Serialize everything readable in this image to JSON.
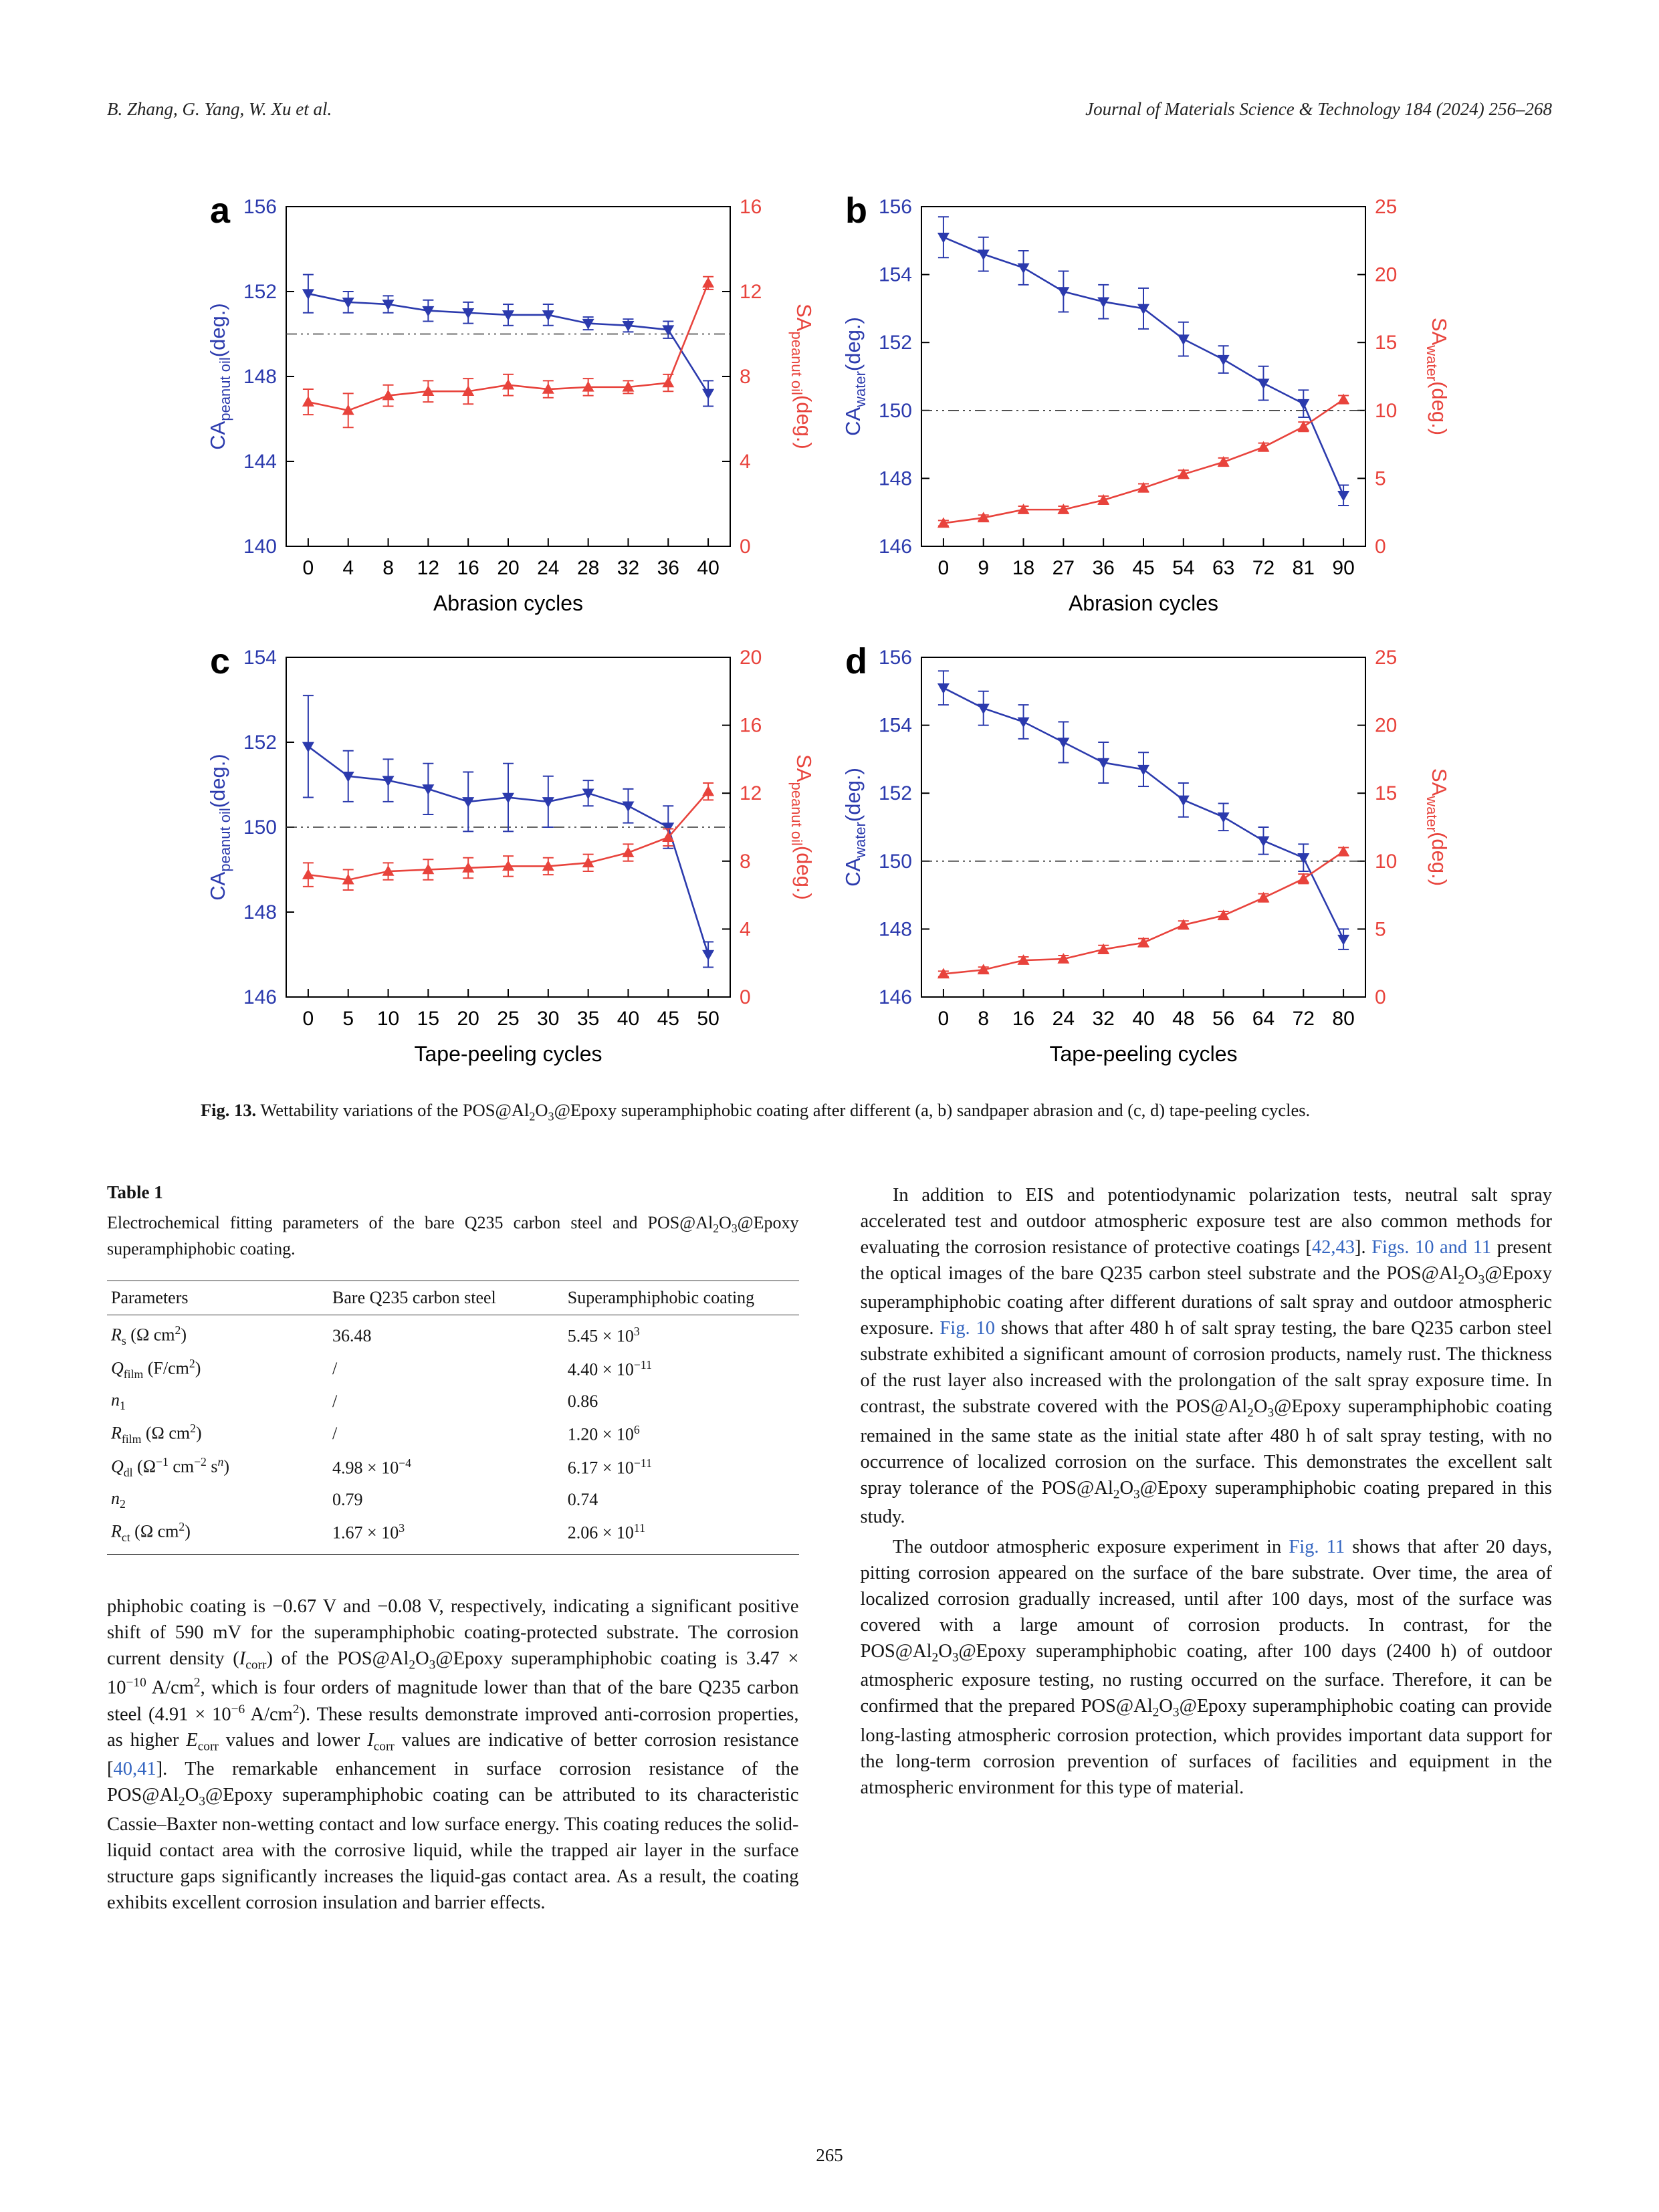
{
  "header": {
    "authors": "B. Zhang, G. Yang, W. Xu et al.",
    "journal": "Journal of Materials Science & Technology 184 (2024) 256–268"
  },
  "figure": {
    "caption_label": "Fig. 13.",
    "caption_text": " Wettability variations of the POS@Al~2~O~3~@Epoxy superamphiphobic coating after different (a, b) sandpaper abrasion and (c, d) tape-peeling cycles."
  },
  "chart_data": [
    {
      "type": "line",
      "panel": "a",
      "xlabel": "Abrasion cycles",
      "x": [
        0,
        4,
        8,
        12,
        16,
        20,
        24,
        28,
        32,
        36,
        40
      ],
      "left_axis": {
        "label": "CA~peanut oil~(deg.)",
        "range": [
          140,
          156
        ],
        "ticks": [
          140,
          144,
          148,
          152,
          156
        ]
      },
      "right_axis": {
        "label": "SA~peanut oil~(deg.)",
        "range": [
          0,
          16
        ],
        "ticks": [
          0,
          4,
          8,
          12,
          16
        ]
      },
      "reference_line_left": 150,
      "series": [
        {
          "name": "CA peanut oil",
          "yaxis": "left",
          "color": "#2b3aad",
          "marker": "triangle-down",
          "values": [
            151.9,
            151.5,
            151.4,
            151.1,
            151.0,
            150.9,
            150.9,
            150.5,
            150.4,
            150.2,
            147.2
          ],
          "errors": [
            0.9,
            0.5,
            0.4,
            0.5,
            0.5,
            0.5,
            0.5,
            0.3,
            0.3,
            0.4,
            0.6
          ]
        },
        {
          "name": "SA peanut oil",
          "yaxis": "right",
          "color": "#e8433c",
          "marker": "triangle-up",
          "values": [
            6.8,
            6.4,
            7.1,
            7.3,
            7.3,
            7.6,
            7.4,
            7.5,
            7.5,
            7.7,
            12.4
          ],
          "errors": [
            0.6,
            0.8,
            0.5,
            0.5,
            0.6,
            0.5,
            0.4,
            0.4,
            0.3,
            0.4,
            0.3
          ]
        }
      ]
    },
    {
      "type": "line",
      "panel": "b",
      "xlabel": "Abrasion cycles",
      "x": [
        0,
        9,
        18,
        27,
        36,
        45,
        54,
        63,
        72,
        81,
        90
      ],
      "left_axis": {
        "label": "CA~water~(deg.)",
        "range": [
          146,
          156
        ],
        "ticks": [
          146,
          148,
          150,
          152,
          154,
          156
        ]
      },
      "right_axis": {
        "label": "SA~water~(deg.)",
        "range": [
          0,
          25
        ],
        "ticks": [
          0,
          5,
          10,
          15,
          20,
          25
        ]
      },
      "reference_line_left": 150,
      "series": [
        {
          "name": "CA water",
          "yaxis": "left",
          "color": "#2b3aad",
          "marker": "triangle-down",
          "values": [
            155.1,
            154.6,
            154.2,
            153.5,
            153.2,
            153.0,
            152.1,
            151.5,
            150.8,
            150.2,
            147.5
          ],
          "errors": [
            0.6,
            0.5,
            0.5,
            0.6,
            0.5,
            0.6,
            0.5,
            0.4,
            0.5,
            0.4,
            0.3
          ]
        },
        {
          "name": "SA water",
          "yaxis": "right",
          "color": "#e8433c",
          "marker": "triangle-up",
          "values": [
            1.7,
            2.1,
            2.7,
            2.7,
            3.4,
            4.3,
            5.3,
            6.2,
            7.3,
            8.8,
            10.8
          ],
          "errors": [
            0.2,
            0.2,
            0.25,
            0.25,
            0.3,
            0.3,
            0.3,
            0.3,
            0.3,
            0.35,
            0.3
          ]
        }
      ]
    },
    {
      "type": "line",
      "panel": "c",
      "xlabel": "Tape-peeling cycles",
      "x": [
        0,
        5,
        10,
        15,
        20,
        25,
        30,
        35,
        40,
        45,
        50
      ],
      "left_axis": {
        "label": "CA~peanut oil~(deg.)",
        "range": [
          146,
          154
        ],
        "ticks": [
          146,
          148,
          150,
          152,
          154
        ]
      },
      "right_axis": {
        "label": "SA~peanut oil~(deg.)",
        "range": [
          0,
          20
        ],
        "ticks": [
          0,
          4,
          8,
          12,
          16,
          20
        ]
      },
      "reference_line_left": 150,
      "series": [
        {
          "name": "CA peanut oil",
          "yaxis": "left",
          "color": "#2b3aad",
          "marker": "triangle-down",
          "values": [
            151.9,
            151.2,
            151.1,
            150.9,
            150.6,
            150.7,
            150.6,
            150.8,
            150.5,
            150.0,
            147.0
          ],
          "errors": [
            1.2,
            0.6,
            0.5,
            0.6,
            0.7,
            0.8,
            0.6,
            0.3,
            0.4,
            0.5,
            0.3
          ]
        },
        {
          "name": "SA peanut oil",
          "yaxis": "right",
          "color": "#e8433c",
          "marker": "triangle-up",
          "values": [
            7.2,
            6.9,
            7.4,
            7.5,
            7.6,
            7.7,
            7.7,
            7.9,
            8.5,
            9.4,
            12.1
          ],
          "errors": [
            0.7,
            0.6,
            0.5,
            0.6,
            0.6,
            0.6,
            0.5,
            0.5,
            0.5,
            0.5,
            0.5
          ]
        }
      ]
    },
    {
      "type": "line",
      "panel": "d",
      "xlabel": "Tape-peeling cycles",
      "x": [
        0,
        8,
        16,
        24,
        32,
        40,
        48,
        56,
        64,
        72,
        80
      ],
      "left_axis": {
        "label": "CA~water~(deg.)",
        "range": [
          146,
          156
        ],
        "ticks": [
          146,
          148,
          150,
          152,
          154,
          156
        ]
      },
      "right_axis": {
        "label": "SA~water~(deg.)",
        "range": [
          0,
          25
        ],
        "ticks": [
          0,
          5,
          10,
          15,
          20,
          25
        ]
      },
      "reference_line_left": 150,
      "series": [
        {
          "name": "CA water",
          "yaxis": "left",
          "color": "#2b3aad",
          "marker": "triangle-down",
          "values": [
            155.1,
            154.5,
            154.1,
            153.5,
            152.9,
            152.7,
            151.8,
            151.3,
            150.6,
            150.1,
            147.7
          ],
          "errors": [
            0.5,
            0.5,
            0.5,
            0.6,
            0.6,
            0.5,
            0.5,
            0.4,
            0.4,
            0.4,
            0.3
          ]
        },
        {
          "name": "SA water",
          "yaxis": "right",
          "color": "#e8433c",
          "marker": "triangle-up",
          "values": [
            1.7,
            2.0,
            2.7,
            2.8,
            3.5,
            4.0,
            5.3,
            6.0,
            7.3,
            8.7,
            10.7
          ],
          "errors": [
            0.2,
            0.2,
            0.25,
            0.25,
            0.3,
            0.3,
            0.3,
            0.3,
            0.3,
            0.35,
            0.3
          ]
        }
      ]
    }
  ],
  "table": {
    "title": "Table 1",
    "description": "Electrochemical fitting parameters of the bare Q235 carbon steel and POS@Al~2~O~3~@Epoxy superamphiphobic coating.",
    "columns": [
      "Parameters",
      "Bare Q235 carbon steel",
      "Superamphiphobic coating"
    ],
    "rows": [
      {
        "param": "*R*~s~ (Ω cm^2^)",
        "bare": "36.48",
        "coating": "5.45 × 10^3^"
      },
      {
        "param": "*Q*~film~ (F/cm^2^)",
        "bare": "/",
        "coating": "4.40 × 10^−11^"
      },
      {
        "param": "*n*~1~",
        "bare": "/",
        "coating": "0.86"
      },
      {
        "param": "*R*~film~ (Ω cm^2^)",
        "bare": "/",
        "coating": "1.20 × 10^6^"
      },
      {
        "param": "*Q*~dl~ (Ω^−1^ cm^−2^ s^*n*^)",
        "bare": "4.98 × 10^−4^",
        "coating": "6.17 × 10^−11^"
      },
      {
        "param": "*n*~2~",
        "bare": "0.79",
        "coating": "0.74"
      },
      {
        "param": "*R*~ct~ (Ω cm^2^)",
        "bare": "1.67 × 10^3^",
        "coating": "2.06 × 10^11^"
      }
    ]
  },
  "body": {
    "left_paragraphs": [
      "phiphobic coating is −0.67 V and −0.08 V, respectively, indicating a significant positive shift of 590 mV for the superamphiphobic coating-protected substrate. The corrosion current density (*I*~corr~) of the POS@Al~2~O~3~@Epoxy superamphiphobic coating is 3.47 × 10^−10^ A/cm^2^, which is four orders of magnitude lower than that of the bare Q235 carbon steel (4.91 × 10^−6^ A/cm^2^). These results demonstrate improved anti-corrosion properties, as higher *E*~corr~ values and lower *I*~corr~ values are indicative of better corrosion resistance [%%40,41%%]. The remarkable enhancement in surface corrosion resistance of the POS@Al~2~O~3~@Epoxy superamphiphobic coating can be attributed to its characteristic Cassie–Baxter non-wetting contact and low surface energy. This coating reduces the solid-liquid contact area with the corrosive liquid, while the trapped air layer in the surface structure gaps significantly increases the liquid-gas contact area. As a result, the coating exhibits excellent corrosion insulation and barrier effects."
    ],
    "right_paragraphs": [
      "In addition to EIS and potentiodynamic polarization tests, neutral salt spray accelerated test and outdoor atmospheric exposure test are also common methods for evaluating the corrosion resistance of protective coatings [%%42,43%%]. %%Figs. 10 and 11%% present the optical images of the bare Q235 carbon steel substrate and the POS@Al~2~O~3~@Epoxy superamphiphobic coating after different durations of salt spray and outdoor atmospheric exposure. %%Fig. 10%% shows that after 480 h of salt spray testing, the bare Q235 carbon steel substrate exhibited a significant amount of corrosion products, namely rust. The thickness of the rust layer also increased with the prolongation of the salt spray exposure time. In contrast, the substrate covered with the POS@Al~2~O~3~@Epoxy superamphiphobic coating remained in the same state as the initial state after 480 h of salt spray testing, with no occurrence of localized corrosion on the surface. This demonstrates the excellent salt spray tolerance of the POS@Al~2~O~3~@Epoxy superamphiphobic coating prepared in this study.",
      "The outdoor atmospheric exposure experiment in %%Fig. 11%% shows that after 20 days, pitting corrosion appeared on the surface of the bare substrate. Over time, the area of localized corrosion gradually increased, until after 100 days, most of the surface was covered with a large amount of corrosion products. In contrast, for the POS@Al~2~O~3~@Epoxy superamphiphobic coating, after 100 days (2400 h) of outdoor atmospheric exposure testing, no rusting occurred on the surface. Therefore, it can be confirmed that the prepared POS@Al~2~O~3~@Epoxy superamphiphobic coating can provide long-lasting atmospheric corrosion protection, which provides important data support for the long-term corrosion prevention of surfaces of facilities and equipment in the atmospheric environment for this type of material."
    ]
  },
  "footer": {
    "page_number": "265"
  }
}
